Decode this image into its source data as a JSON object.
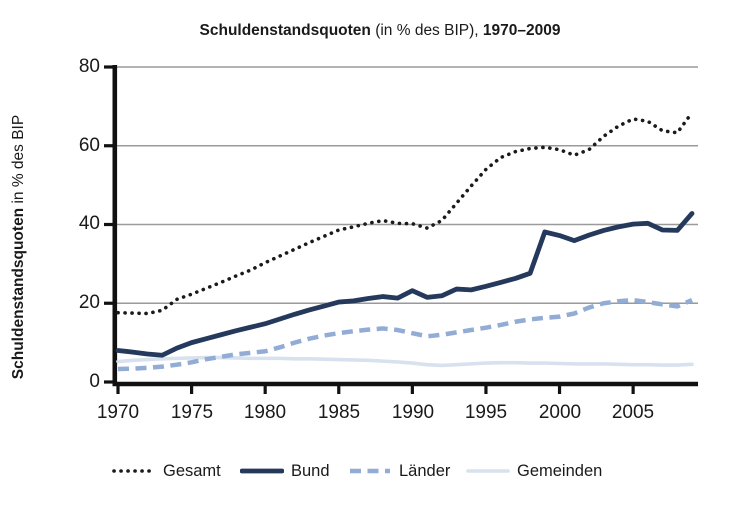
{
  "title": {
    "part1": "Schuldenstandsquoten",
    "part2": " (in % des BIP), ",
    "part3": "1970–2009"
  },
  "y_axis_label": {
    "bold": "Schuldenstandsquoten",
    "regular": " in % des BIP"
  },
  "chart_data": {
    "type": "line",
    "title": "Schuldenstandsquoten (in % des BIP), 1970–2009",
    "xlabel": "",
    "ylabel": "Schuldenstandsquoten in % des BIP",
    "ylim": [
      0,
      80
    ],
    "xlim": [
      1970,
      2009
    ],
    "yticks": [
      0,
      20,
      40,
      60,
      80
    ],
    "xticks": [
      1970,
      1975,
      1980,
      1985,
      1990,
      1995,
      2000,
      2005
    ],
    "grid": "horizontal",
    "legend_position": "bottom",
    "x": [
      1970,
      1971,
      1972,
      1973,
      1974,
      1975,
      1976,
      1977,
      1978,
      1979,
      1980,
      1981,
      1982,
      1983,
      1984,
      1985,
      1986,
      1987,
      1988,
      1989,
      1990,
      1991,
      1992,
      1993,
      1994,
      1995,
      1996,
      1997,
      1998,
      1999,
      2000,
      2001,
      2002,
      2003,
      2004,
      2005,
      2006,
      2007,
      2008,
      2009
    ],
    "series": [
      {
        "name": "Gesamt",
        "style": "dotted",
        "color": "#1a1a1a",
        "values": [
          17.6,
          17.5,
          17.4,
          18.2,
          21.0,
          22.3,
          23.8,
          25.3,
          26.9,
          28.4,
          30.3,
          32.0,
          33.7,
          35.4,
          37.0,
          38.6,
          39.4,
          40.3,
          41.0,
          40.3,
          40.2,
          39.1,
          41.0,
          45.4,
          49.8,
          54.0,
          57.0,
          58.5,
          59.3,
          59.6,
          59.0,
          57.6,
          59.0,
          62.4,
          65.0,
          66.8,
          66.2,
          63.8,
          63.3,
          68.4
        ]
      },
      {
        "name": "Bund",
        "style": "solid",
        "color": "#25395c",
        "values": [
          8.0,
          7.6,
          7.1,
          6.8,
          8.6,
          10.0,
          11.0,
          12.0,
          13.0,
          13.9,
          14.8,
          16.0,
          17.2,
          18.3,
          19.3,
          20.3,
          20.6,
          21.2,
          21.7,
          21.3,
          23.2,
          21.5,
          21.9,
          23.6,
          23.4,
          24.3,
          25.3,
          26.3,
          27.6,
          38.1,
          37.2,
          35.9,
          37.3,
          38.5,
          39.4,
          40.1,
          40.3,
          38.6,
          38.5,
          42.8
        ]
      },
      {
        "name": "Länder",
        "style": "dashed",
        "color": "#92acd5",
        "values": [
          3.3,
          3.4,
          3.6,
          3.9,
          4.4,
          5.0,
          5.8,
          6.4,
          7.0,
          7.4,
          7.8,
          8.8,
          10.0,
          11.0,
          11.8,
          12.4,
          12.9,
          13.3,
          13.6,
          13.2,
          12.4,
          11.6,
          12.0,
          12.6,
          13.2,
          13.8,
          14.5,
          15.3,
          15.9,
          16.3,
          16.6,
          17.4,
          18.9,
          20.0,
          20.5,
          20.8,
          20.3,
          19.7,
          19.2,
          20.8
        ]
      },
      {
        "name": "Gemeinden",
        "style": "solid-thin",
        "color": "#d8e2ef",
        "values": [
          5.2,
          5.5,
          5.7,
          5.9,
          6.0,
          6.1,
          6.2,
          6.2,
          6.1,
          6.0,
          6.0,
          6.0,
          5.9,
          5.9,
          5.8,
          5.7,
          5.6,
          5.5,
          5.3,
          5.1,
          4.8,
          4.4,
          4.2,
          4.4,
          4.6,
          4.8,
          4.9,
          4.9,
          4.8,
          4.8,
          4.7,
          4.6,
          4.6,
          4.6,
          4.5,
          4.4,
          4.4,
          4.3,
          4.3,
          4.5
        ]
      }
    ],
    "axis_color": "#111111",
    "gridline_color": "#9a9a9a"
  }
}
